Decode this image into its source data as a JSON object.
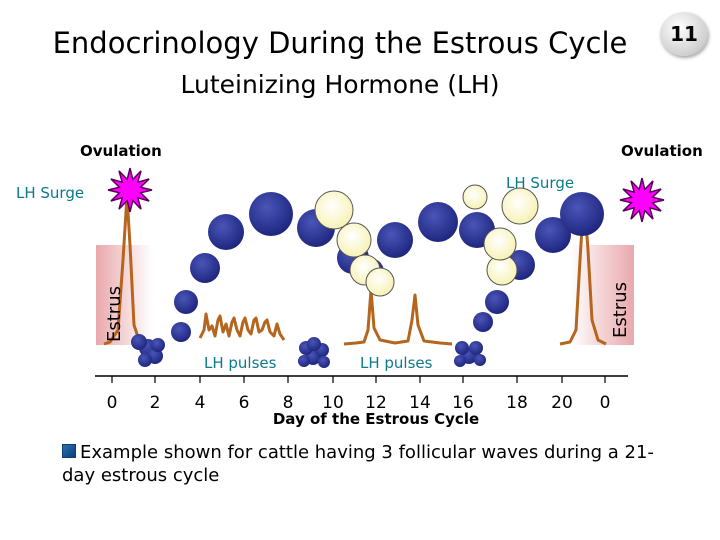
{
  "slide": {
    "title": "Endocrinology During the Estrous Cycle",
    "subtitle": "Luteinizing Hormone (LH)",
    "number": "11"
  },
  "labels": {
    "ovulation_left": "Ovulation",
    "ovulation_right": "Ovulation",
    "lh_surge_left": "LH Surge",
    "lh_surge_right": "LH Surge",
    "estrus_left": "Estrus",
    "estrus_right": "Estrus",
    "lh_pulses_left": "LH pulses",
    "lh_pulses_right": "LH pulses",
    "xlabel": "Day of the Estrous Cycle"
  },
  "colors": {
    "lh_line": "#b5651d",
    "small_follicle": "#1b237a",
    "large_follicle": "#2a338f",
    "corpus_luteum": "#fdf9c4",
    "ovulation_star": "#ff00ff",
    "estrus_band": "#e9a8ac",
    "label_teal": "#0b7a8c"
  },
  "axis_ticks": [
    "0",
    "2",
    "4",
    "6",
    "8",
    "10",
    "12",
    "14",
    "16",
    "18",
    "20",
    "0"
  ],
  "bullet": "Example shown for cattle having 3 follicular waves during a 21-day estrous cycle"
}
